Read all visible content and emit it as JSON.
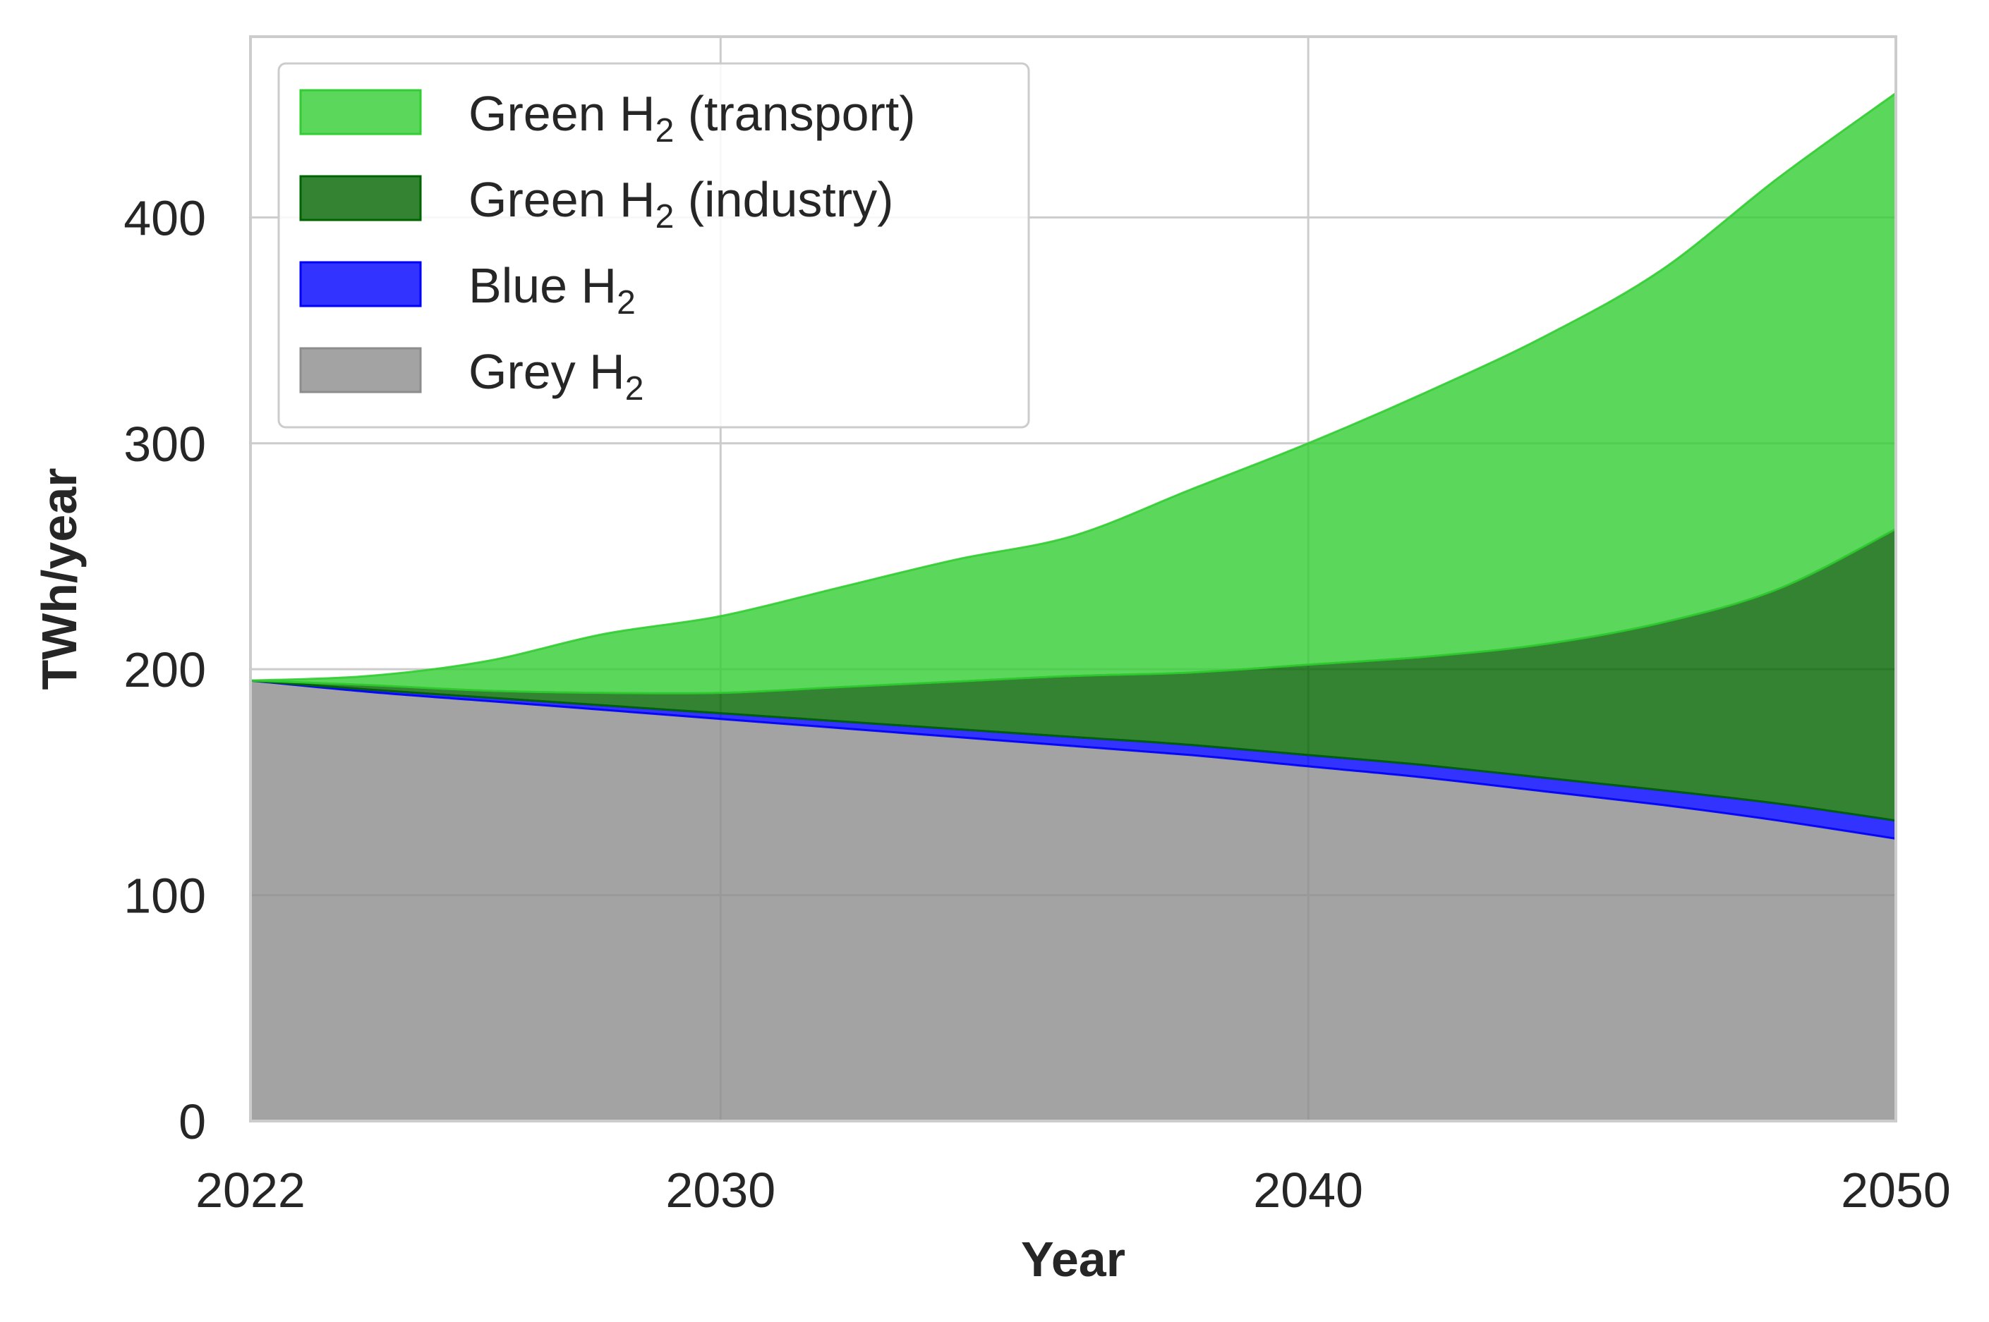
{
  "chart_data": {
    "type": "area",
    "stacked": true,
    "xlabel": "Year",
    "ylabel": "TWh/year",
    "xlim": [
      2022,
      2050
    ],
    "ylim": [
      0,
      480
    ],
    "xticks": [
      2022,
      2030,
      2040,
      2050
    ],
    "yticks": [
      0,
      100,
      200,
      300,
      400
    ],
    "grid": true,
    "legend_position": "top-left",
    "x": [
      2022,
      2024,
      2026,
      2028,
      2030,
      2032,
      2034,
      2036,
      2038,
      2040,
      2042,
      2044,
      2046,
      2048,
      2050
    ],
    "series": [
      {
        "name": "Grey H",
        "name_sub": "2",
        "color": "#8c8c8c",
        "values": [
          195,
          190,
          186,
          182,
          178,
          174,
          170,
          166,
          162,
          157,
          152,
          146,
          140,
          133,
          125
        ]
      },
      {
        "name": "Blue H",
        "name_sub": "2",
        "color": "#0000ff",
        "values": [
          0,
          1,
          1.5,
          2,
          2.5,
          3,
          3.5,
          4,
          4.5,
          5,
          5.5,
          6,
          6.5,
          7.5,
          8
        ]
      },
      {
        "name": "Green H",
        "name_sub": "2",
        "name_suffix": " (industry)",
        "color": "#006400",
        "values": [
          0,
          2,
          3,
          5.5,
          9,
          15,
          21,
          27,
          32,
          40,
          48,
          59,
          74,
          95,
          129
        ]
      },
      {
        "name": "Green H",
        "name_sub": "2",
        "name_suffix": " (transport)",
        "color": "#32cd32",
        "values": [
          0,
          4,
          13,
          26,
          34,
          44,
          54,
          62,
          81,
          98,
          117,
          136,
          156,
          182,
          193
        ]
      }
    ]
  }
}
